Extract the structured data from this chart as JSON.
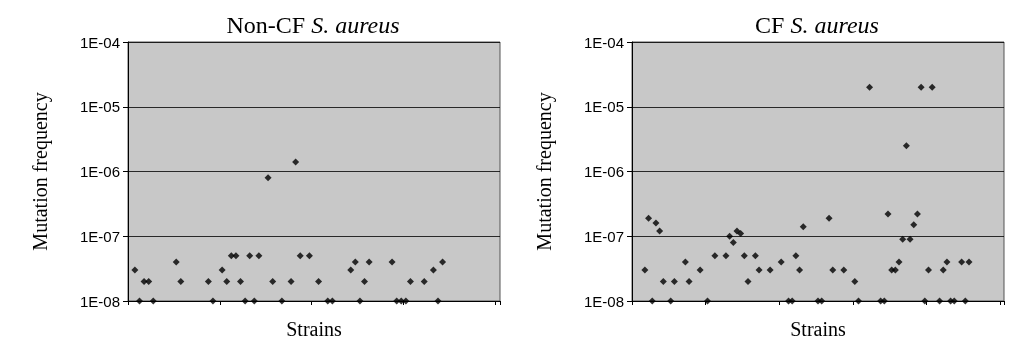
{
  "chart_data": [
    {
      "type": "scatter",
      "title": "Non-CF S. aureus",
      "xlabel": "Strains",
      "ylabel": "Mutation frequency",
      "log": "y",
      "grid": "y",
      "marker": "diamond",
      "tick_labels": "y",
      "ylim": [
        1e-08,
        0.0001
      ],
      "yticks": [
        {
          "value": 1e-08,
          "label": "1E-08"
        },
        {
          "value": 1e-07,
          "label": "1E-07"
        },
        {
          "value": 1e-06,
          "label": "1E-06"
        },
        {
          "value": 1e-05,
          "label": "1E-05"
        },
        {
          "value": 0.0001,
          "label": "1E-04"
        }
      ],
      "categories": [
        null,
        null,
        null,
        null,
        null,
        null,
        null,
        null,
        null,
        null,
        null,
        null,
        null,
        null,
        null,
        null,
        null,
        null,
        null,
        null,
        null,
        null,
        null,
        null,
        null,
        null,
        null,
        null,
        null,
        null,
        null,
        null,
        null,
        null,
        null,
        null,
        null,
        null,
        null,
        null,
        null,
        null,
        null,
        null,
        null,
        null,
        null,
        null,
        null,
        null,
        null,
        null,
        null,
        null,
        null,
        null,
        null,
        null,
        null,
        null,
        null,
        null,
        null,
        null,
        null,
        null,
        null,
        null,
        null,
        null,
        null,
        null,
        null,
        null,
        null,
        null,
        null,
        null,
        null,
        null,
        null
      ],
      "series": [
        {
          "color": "#000000",
          "values": [
            null,
            3e-08,
            1e-08,
            2e-08,
            2e-08,
            1e-08,
            null,
            null,
            null,
            null,
            4e-08,
            2e-08,
            null,
            null,
            null,
            null,
            null,
            2e-08,
            1e-08,
            null,
            3e-08,
            2e-08,
            5e-08,
            5e-08,
            2e-08,
            1e-08,
            5e-08,
            1e-08,
            5e-08,
            null,
            8e-07,
            2e-08,
            null,
            1e-08,
            null,
            2e-08,
            1.4e-06,
            5e-08,
            null,
            5e-08,
            null,
            2e-08,
            null,
            1e-08,
            1e-08,
            null,
            null,
            null,
            3e-08,
            4e-08,
            1e-08,
            2e-08,
            4e-08,
            null,
            null,
            null,
            null,
            4e-08,
            1e-08,
            1e-08,
            1e-08,
            2e-08,
            null,
            null,
            2e-08,
            null,
            3e-08,
            1e-08,
            4e-08,
            null,
            null,
            null,
            null,
            null,
            null,
            null,
            null,
            null,
            null,
            null,
            null
          ]
        }
      ]
    },
    {
      "type": "scatter",
      "title": "CF S. aureus",
      "xlabel": "Strains",
      "ylabel": "Mutation frequency",
      "log": "y",
      "grid": "y",
      "marker": "diamond",
      "tick_labels": "y",
      "ylim": [
        1e-08,
        0.0001
      ],
      "yticks": [
        {
          "value": 1e-08,
          "label": "1E-08"
        },
        {
          "value": 1e-07,
          "label": "1E-07"
        },
        {
          "value": 1e-06,
          "label": "1E-06"
        },
        {
          "value": 1e-05,
          "label": "1E-05"
        },
        {
          "value": 0.0001,
          "label": "1E-04"
        }
      ],
      "categories": [
        null,
        null,
        null,
        null,
        null,
        null,
        null,
        null,
        null,
        null,
        null,
        null,
        null,
        null,
        null,
        null,
        null,
        null,
        null,
        null,
        null,
        null,
        null,
        null,
        null,
        null,
        null,
        null,
        null,
        null,
        null,
        null,
        null,
        null,
        null,
        null,
        null,
        null,
        null,
        null,
        null,
        null,
        null,
        null,
        null,
        null,
        null,
        null,
        null,
        null,
        null,
        null,
        null,
        null,
        null,
        null,
        null,
        null,
        null,
        null,
        null,
        null,
        null,
        null,
        null,
        null,
        null,
        null,
        null,
        null,
        null,
        null,
        null,
        null,
        null,
        null,
        null,
        null,
        null,
        null,
        null,
        null,
        null,
        null,
        null,
        null,
        null,
        null,
        null,
        null,
        null,
        null,
        null,
        null,
        null,
        null,
        null,
        null,
        null,
        null,
        null
      ],
      "series": [
        {
          "color": "#000000",
          "values": [
            null,
            null,
            null,
            3e-08,
            1.9e-07,
            1e-08,
            1.6e-07,
            1.2e-07,
            2e-08,
            null,
            1e-08,
            2e-08,
            null,
            null,
            4e-08,
            2e-08,
            null,
            null,
            3e-08,
            null,
            1e-08,
            null,
            5e-08,
            null,
            null,
            5e-08,
            1e-07,
            8e-08,
            1.2e-07,
            1.1e-07,
            5e-08,
            2e-08,
            null,
            5e-08,
            3e-08,
            null,
            null,
            3e-08,
            null,
            null,
            4e-08,
            null,
            1e-08,
            1e-08,
            5e-08,
            3e-08,
            1.4e-07,
            null,
            null,
            null,
            1e-08,
            1e-08,
            null,
            1.9e-07,
            3e-08,
            null,
            null,
            3e-08,
            null,
            null,
            2e-08,
            1e-08,
            null,
            null,
            2e-05,
            null,
            null,
            1e-08,
            1e-08,
            2.2e-07,
            3e-08,
            3e-08,
            4e-08,
            9e-08,
            2.5e-06,
            9e-08,
            1.5e-07,
            2.2e-07,
            2e-05,
            1e-08,
            3e-08,
            2e-05,
            null,
            1e-08,
            3e-08,
            4e-08,
            1e-08,
            1e-08,
            null,
            4e-08,
            1e-08,
            4e-08,
            null,
            null,
            null,
            null,
            null,
            null,
            null,
            null,
            null
          ]
        }
      ]
    }
  ]
}
